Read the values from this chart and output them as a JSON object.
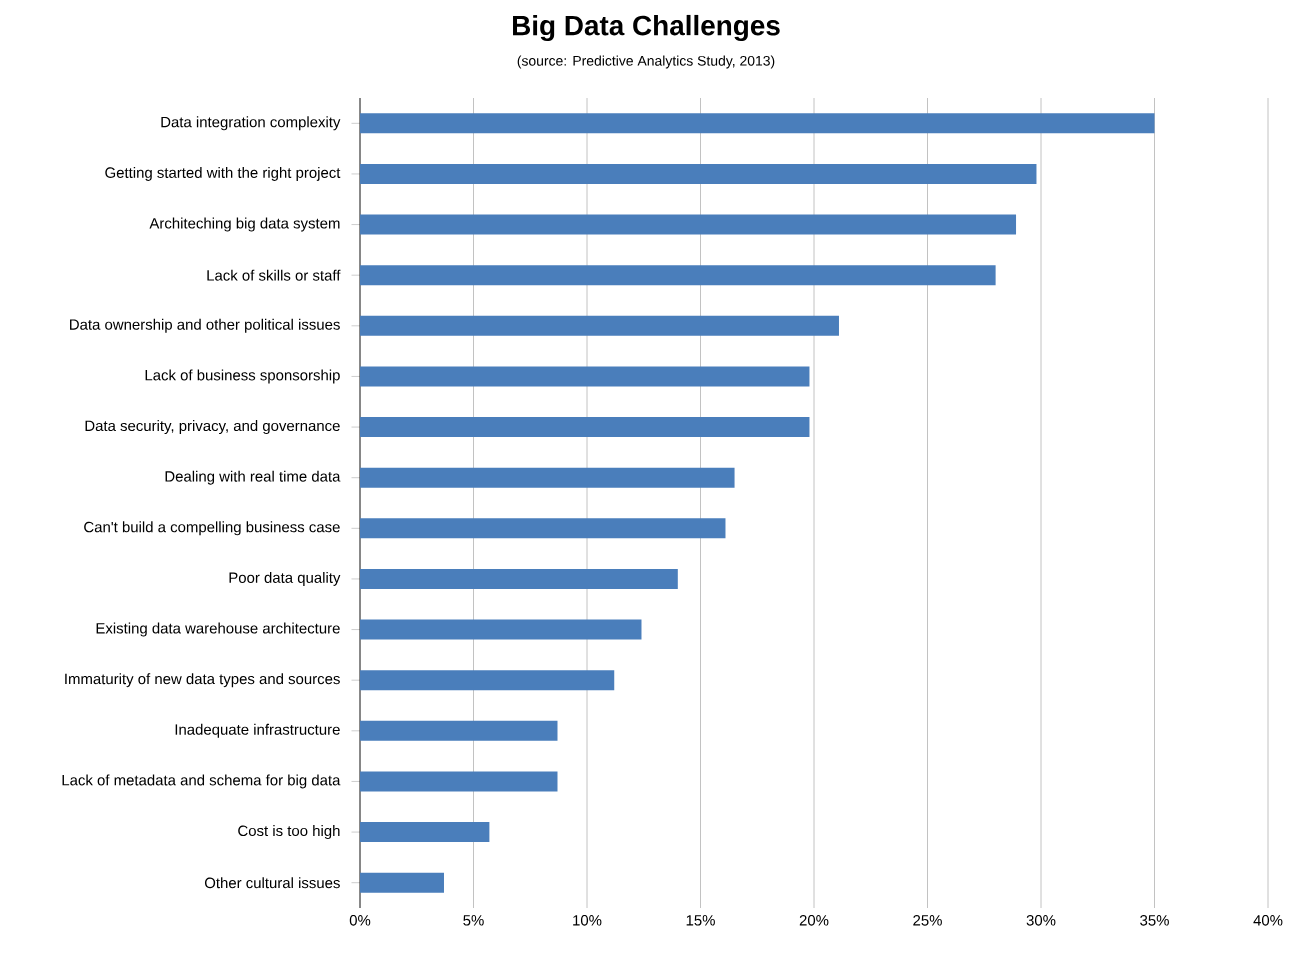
{
  "chart_data": {
    "type": "bar",
    "orientation": "horizontal",
    "title": "Big Data Challenges",
    "subtitle": "(source: Predictive Analytics Study, 2013)",
    "categories": [
      "Data integration complexity",
      "Getting started with the right project",
      "Architeching big data system",
      "Lack of skills or staff",
      "Data ownership and other political issues",
      "Lack of business sponsorship",
      "Data security, privacy, and governance",
      "Dealing with real time data",
      "Can't build a compelling business case",
      "Poor data quality",
      "Existing data warehouse architecture",
      "Immaturity of new data types and sources",
      "Inadequate infrastructure",
      "Lack of metadata and schema for big data",
      "Cost is too high",
      "Other cultural issues"
    ],
    "values": [
      35,
      29.8,
      28.9,
      28.0,
      21.1,
      19.8,
      19.8,
      16.5,
      16.1,
      14.0,
      12.4,
      11.2,
      8.7,
      8.7,
      5.7,
      3.7
    ],
    "color": "#4a7ebb",
    "xlim": [
      0,
      40
    ],
    "xticks": [
      {
        "value": 0,
        "label": "0%"
      },
      {
        "value": 5,
        "label": "5%"
      },
      {
        "value": 10,
        "label": "10%"
      },
      {
        "value": 15,
        "label": "15%"
      },
      {
        "value": 20,
        "label": "20%"
      },
      {
        "value": 25,
        "label": "25%"
      },
      {
        "value": 30,
        "label": "30%"
      },
      {
        "value": 35,
        "label": "35%"
      },
      {
        "value": 40,
        "label": "40%"
      }
    ],
    "grid": "x"
  }
}
